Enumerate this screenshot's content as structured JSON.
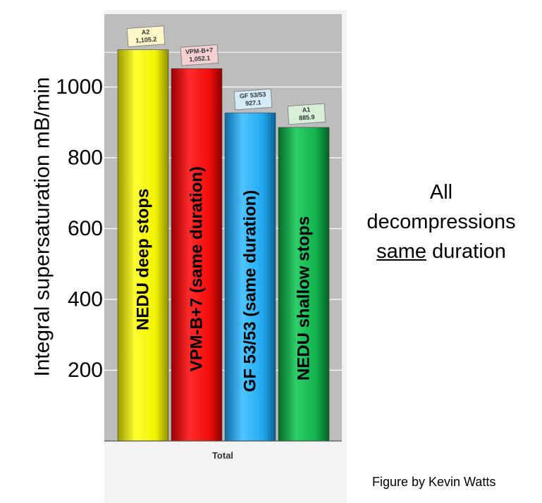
{
  "chart_data": {
    "type": "bar",
    "ylabel": "Integral supersaturation mB/min",
    "ylim": [
      0,
      1200
    ],
    "yticks": [
      200,
      400,
      600,
      800,
      1000
    ],
    "xlabel": "",
    "category": "Total",
    "grid": true,
    "legend": "none",
    "series": [
      {
        "name": "NEDU deep stops",
        "callout_name": "A2",
        "value_label": "1,105.2",
        "value": 1105.2,
        "color": "#f2f200",
        "callout_color": "#fdf6c8"
      },
      {
        "name": "VPM-B+7 (same duration)",
        "callout_name": "VPM-B+7",
        "value_label": "1,052.1",
        "value": 1052.1,
        "color": "#f20d0d",
        "callout_color": "#f6cfd2"
      },
      {
        "name": "GF 53/53 (same duration)",
        "callout_name": "GF 53/53",
        "value_label": "927.1",
        "value": 927.1,
        "color": "#22a9f0",
        "callout_color": "#d3ecf8"
      },
      {
        "name": "NEDU shallow stops",
        "callout_name": "A1",
        "value_label": "885.9",
        "value": 885.9,
        "color": "#11b04a",
        "callout_color": "#d6efd6"
      }
    ]
  },
  "note": {
    "line1": "All",
    "line2": "decompressions",
    "line3_underlined": "same",
    "line3_rest": " duration"
  },
  "credit": "Figure by Kevin Watts"
}
